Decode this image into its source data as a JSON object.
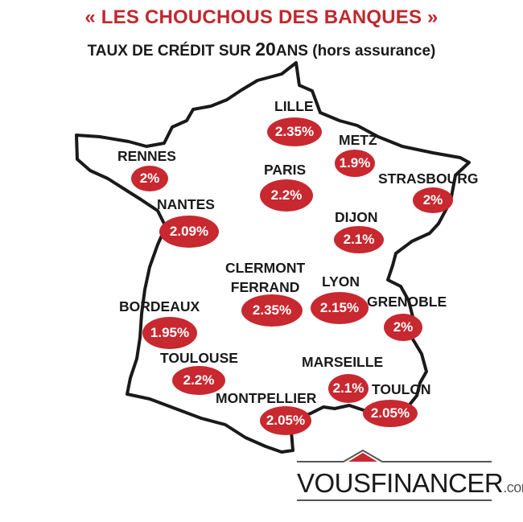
{
  "header": {
    "title": "« LES CHOUCHOUS DES BANQUES »",
    "subtitle_prefix": "TAUX DE CRÉDIT SUR ",
    "subtitle_years": "20",
    "subtitle_unit": "ANS",
    "subtitle_suffix": " (hors assurance)"
  },
  "cities": [
    {
      "name": "LILLE",
      "rate": "2.35%"
    },
    {
      "name": "METZ",
      "rate": "1.9%"
    },
    {
      "name": "RENNES",
      "rate": "2%"
    },
    {
      "name": "PARIS",
      "rate": "2.2%"
    },
    {
      "name": "STRASBOURG",
      "rate": "2%"
    },
    {
      "name": "NANTES",
      "rate": "2.09%"
    },
    {
      "name": "DIJON",
      "rate": "2.1%"
    },
    {
      "name": "CLERMONT\nFERRAND",
      "rate": "2.35%"
    },
    {
      "name": "LYON",
      "rate": "2.15%"
    },
    {
      "name": "GRENOBLE",
      "rate": "2%"
    },
    {
      "name": "BORDEAUX",
      "rate": "1.95%"
    },
    {
      "name": "TOULOUSE",
      "rate": "2.2%"
    },
    {
      "name": "MARSEILLE",
      "rate": "2.1%"
    },
    {
      "name": "MONTPELLIER",
      "rate": "2.05%"
    },
    {
      "name": "TOULON",
      "rate": "2.05%"
    }
  ],
  "logo": {
    "brand": "VOUSFINANCER",
    "tld": ".com"
  },
  "colors": {
    "accent": "#c8282f",
    "title": "#c0282d",
    "text": "#1a1a1a"
  }
}
